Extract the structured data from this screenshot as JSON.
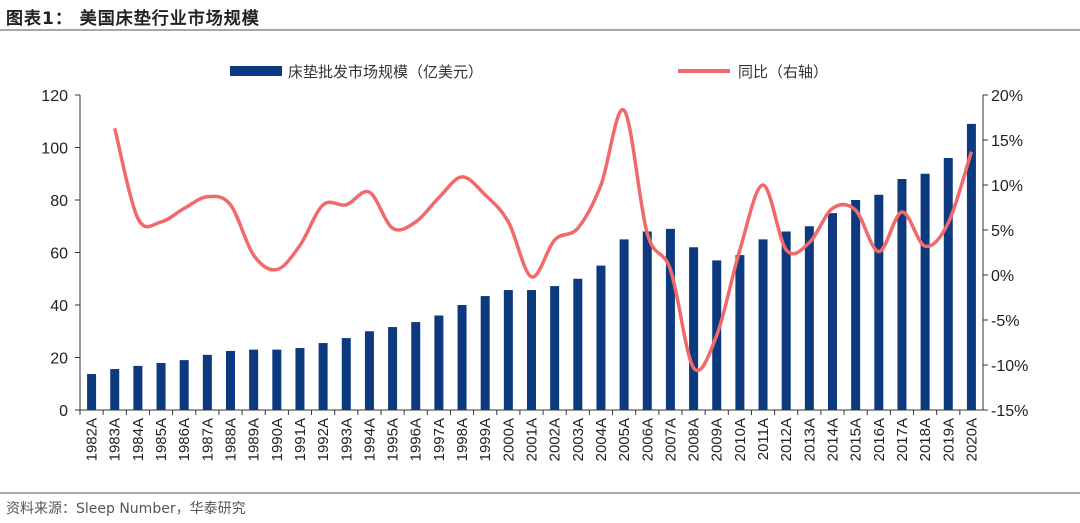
{
  "header": {
    "title": "图表1：  美国床垫行业市场规模"
  },
  "footer": {
    "source": "资料来源：Sleep Number，华泰研究"
  },
  "colors": {
    "bar": "#0d3a7e",
    "line": "#f06a6a"
  },
  "chart_data": {
    "type": "bar+line",
    "title": "",
    "legend_position": "top",
    "categories": [
      "1982A",
      "1983A",
      "1984A",
      "1985A",
      "1986A",
      "1987A",
      "1988A",
      "1989A",
      "1990A",
      "1991A",
      "1992A",
      "1993A",
      "1994A",
      "1995A",
      "1996A",
      "1997A",
      "1998A",
      "1999A",
      "2000A",
      "2001A",
      "2002A",
      "2003A",
      "2004A",
      "2005A",
      "2006A",
      "2007A",
      "2008A",
      "2009A",
      "2010A",
      "2011A",
      "2012A",
      "2013A",
      "2014A",
      "2015A",
      "2016A",
      "2017A",
      "2018A",
      "2019A",
      "2020A"
    ],
    "left_axis": {
      "range": [
        0,
        120
      ],
      "ticks": [
        "0",
        "20",
        "40",
        "60",
        "80",
        "100",
        "120"
      ]
    },
    "right_axis": {
      "range": [
        -15,
        20
      ],
      "ticks": [
        "-15%",
        "-10%",
        "-5%",
        "0%",
        "5%",
        "10%",
        "15%",
        "20%"
      ]
    },
    "grid": false,
    "series": [
      {
        "name": "床垫批发市场规模（亿美元）",
        "type": "bar",
        "axis": "left",
        "values": [
          13.7,
          15.6,
          16.8,
          17.9,
          19,
          21,
          22.5,
          23,
          23,
          23.6,
          25.5,
          27.4,
          30,
          31.6,
          33.5,
          36,
          40,
          43.4,
          45.7,
          45.7,
          47.2,
          50,
          55,
          65,
          68,
          69,
          62,
          57,
          59,
          65,
          68,
          70,
          75,
          80,
          82,
          88,
          90,
          96,
          109
        ]
      },
      {
        "name": "同比（右轴）",
        "type": "line",
        "axis": "right",
        "unit": "%",
        "values": [
          null,
          16.3,
          6.3,
          5.9,
          7.4,
          8.7,
          7.8,
          2.2,
          0.6,
          3.3,
          7.8,
          7.8,
          9.2,
          5.2,
          5.9,
          8.6,
          10.9,
          8.9,
          5.9,
          -0.2,
          3.9,
          5.2,
          10,
          18.3,
          4.6,
          0.6,
          -10.3,
          -6.7,
          2.8,
          10,
          2.8,
          3.6,
          7.4,
          7.2,
          2.6,
          7,
          3.2,
          5.8,
          13.7
        ]
      }
    ]
  }
}
